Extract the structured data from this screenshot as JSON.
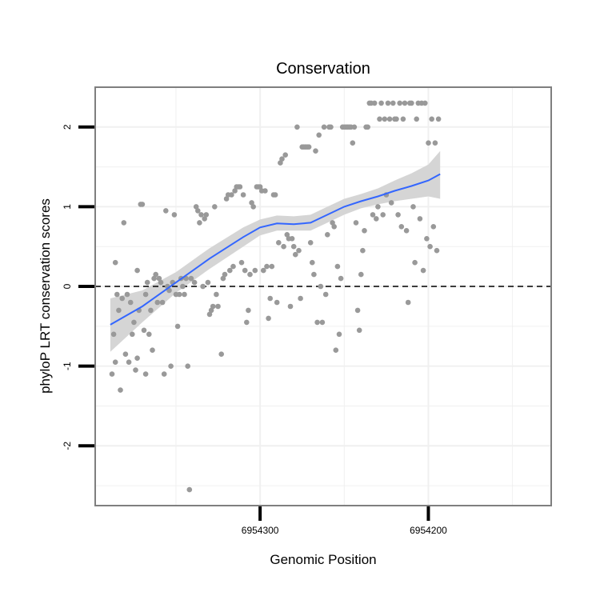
{
  "chart_data": {
    "type": "scatter",
    "title": "Conservation",
    "xlabel": "Genomic Position",
    "ylabel": "phyloP LRT conservation scores",
    "x_reversed": true,
    "xlim": [
      6954398,
      6954127
    ],
    "ylim": [
      -2.75,
      2.5
    ],
    "x_ticks": [
      {
        "value": 6954300,
        "label": "6954300"
      },
      {
        "value": 6954200,
        "label": "6954200"
      }
    ],
    "y_ticks": [
      {
        "value": -2,
        "label": "-2"
      },
      {
        "value": -1,
        "label": "-1"
      },
      {
        "value": 0,
        "label": "0"
      },
      {
        "value": 1,
        "label": "1"
      },
      {
        "value": 2,
        "label": "2"
      }
    ],
    "reference_line": {
      "y": 0,
      "style": "dashed"
    },
    "grid": true,
    "colors": {
      "points": "#999999",
      "smooth_line": "#3366FF",
      "ribbon": "#d5d5d5",
      "panel_border": "#7f7f7f",
      "grid": "#f0f0f0"
    },
    "points": [
      [
        6954388,
        -1.1
      ],
      [
        6954387,
        -0.6
      ],
      [
        6954386,
        0.3
      ],
      [
        6954386,
        -0.95
      ],
      [
        6954385,
        -0.1
      ],
      [
        6954384,
        -0.3
      ],
      [
        6954383,
        -1.3
      ],
      [
        6954382,
        -0.15
      ],
      [
        6954381,
        0.8
      ],
      [
        6954380,
        -0.85
      ],
      [
        6954379,
        -0.1
      ],
      [
        6954378,
        -0.95
      ],
      [
        6954377,
        -0.2
      ],
      [
        6954376,
        -0.6
      ],
      [
        6954375,
        -0.45
      ],
      [
        6954374,
        -1.05
      ],
      [
        6954373,
        -0.9
      ],
      [
        6954373,
        0.2
      ],
      [
        6954372,
        -0.3
      ],
      [
        6954371,
        1.03
      ],
      [
        6954370,
        1.03
      ],
      [
        6954369,
        -0.55
      ],
      [
        6954368,
        -1.1
      ],
      [
        6954368,
        -0.1
      ],
      [
        6954367,
        0.05
      ],
      [
        6954366,
        -0.6
      ],
      [
        6954365,
        -0.3
      ],
      [
        6954364,
        -0.8
      ],
      [
        6954363,
        0.1
      ],
      [
        6954362,
        0.15
      ],
      [
        6954361,
        -0.2
      ],
      [
        6954360,
        0.1
      ],
      [
        6954359,
        0.05
      ],
      [
        6954358,
        -0.2
      ],
      [
        6954357,
        -1.1
      ],
      [
        6954356,
        0.95
      ],
      [
        6954355,
        0.0
      ],
      [
        6954354,
        -0.05
      ],
      [
        6954353,
        -1.0
      ],
      [
        6954352,
        0.05
      ],
      [
        6954351,
        0.9
      ],
      [
        6954350,
        -0.1
      ],
      [
        6954349,
        -0.5
      ],
      [
        6954348,
        -0.1
      ],
      [
        6954347,
        0.1
      ],
      [
        6954346,
        0.0
      ],
      [
        6954345,
        -0.1
      ],
      [
        6954344,
        0.1
      ],
      [
        6954343,
        -1.0
      ],
      [
        6954342,
        -2.55
      ],
      [
        6954341,
        0.1
      ],
      [
        6954339,
        0.05
      ],
      [
        6954338,
        1.0
      ],
      [
        6954337,
        0.95
      ],
      [
        6954336,
        0.8
      ],
      [
        6954335,
        0.9
      ],
      [
        6954334,
        0.0
      ],
      [
        6954333,
        0.85
      ],
      [
        6954332,
        0.9
      ],
      [
        6954331,
        0.05
      ],
      [
        6954330,
        -0.35
      ],
      [
        6954329,
        -0.3
      ],
      [
        6954328,
        -0.25
      ],
      [
        6954327,
        1.0
      ],
      [
        6954326,
        -0.1
      ],
      [
        6954325,
        -0.25
      ],
      [
        6954323,
        -0.85
      ],
      [
        6954322,
        0.1
      ],
      [
        6954321,
        0.15
      ],
      [
        6954320,
        1.1
      ],
      [
        6954319,
        1.15
      ],
      [
        6954318,
        0.2
      ],
      [
        6954317,
        1.15
      ],
      [
        6954316,
        0.25
      ],
      [
        6954315,
        1.2
      ],
      [
        6954314,
        1.25
      ],
      [
        6954313,
        1.25
      ],
      [
        6954312,
        1.25
      ],
      [
        6954311,
        0.3
      ],
      [
        6954310,
        1.15
      ],
      [
        6954309,
        0.2
      ],
      [
        6954308,
        -0.45
      ],
      [
        6954307,
        -0.3
      ],
      [
        6954306,
        0.15
      ],
      [
        6954305,
        1.05
      ],
      [
        6954304,
        1.0
      ],
      [
        6954303,
        0.2
      ],
      [
        6954302,
        1.25
      ],
      [
        6954301,
        1.25
      ],
      [
        6954300,
        1.25
      ],
      [
        6954299,
        1.2
      ],
      [
        6954298,
        0.2
      ],
      [
        6954297,
        1.2
      ],
      [
        6954296,
        0.25
      ],
      [
        6954295,
        -0.4
      ],
      [
        6954294,
        -0.15
      ],
      [
        6954293,
        0.25
      ],
      [
        6954292,
        1.15
      ],
      [
        6954291,
        1.15
      ],
      [
        6954290,
        -0.2
      ],
      [
        6954289,
        0.55
      ],
      [
        6954288,
        1.55
      ],
      [
        6954287,
        1.6
      ],
      [
        6954286,
        0.5
      ],
      [
        6954285,
        1.65
      ],
      [
        6954284,
        0.65
      ],
      [
        6954283,
        0.6
      ],
      [
        6954282,
        -0.25
      ],
      [
        6954281,
        0.6
      ],
      [
        6954280,
        0.5
      ],
      [
        6954279,
        0.4
      ],
      [
        6954278,
        2.0
      ],
      [
        6954277,
        0.45
      ],
      [
        6954276,
        -0.15
      ],
      [
        6954275,
        1.75
      ],
      [
        6954274,
        1.75
      ],
      [
        6954273,
        1.75
      ],
      [
        6954272,
        1.75
      ],
      [
        6954271,
        1.75
      ],
      [
        6954270,
        0.55
      ],
      [
        6954269,
        0.3
      ],
      [
        6954268,
        0.15
      ],
      [
        6954267,
        1.7
      ],
      [
        6954266,
        -0.45
      ],
      [
        6954265,
        1.9
      ],
      [
        6954264,
        0.0
      ],
      [
        6954263,
        -0.45
      ],
      [
        6954262,
        2.0
      ],
      [
        6954261,
        -0.1
      ],
      [
        6954260,
        0.65
      ],
      [
        6954259,
        2.0
      ],
      [
        6954258,
        2.0
      ],
      [
        6954257,
        0.8
      ],
      [
        6954256,
        0.75
      ],
      [
        6954255,
        -0.8
      ],
      [
        6954254,
        0.25
      ],
      [
        6954253,
        -0.6
      ],
      [
        6954252,
        0.1
      ],
      [
        6954251,
        2.0
      ],
      [
        6954250,
        2.0
      ],
      [
        6954249,
        2.0
      ],
      [
        6954248,
        2.0
      ],
      [
        6954247,
        2.0
      ],
      [
        6954246,
        2.0
      ],
      [
        6954245,
        1.8
      ],
      [
        6954244,
        2.0
      ],
      [
        6954243,
        0.8
      ],
      [
        6954242,
        -0.3
      ],
      [
        6954241,
        -0.55
      ],
      [
        6954240,
        0.15
      ],
      [
        6954239,
        0.45
      ],
      [
        6954238,
        0.7
      ],
      [
        6954237,
        2.0
      ],
      [
        6954236,
        2.0
      ],
      [
        6954235,
        2.3
      ],
      [
        6954234,
        2.3
      ],
      [
        6954233,
        0.9
      ],
      [
        6954232,
        2.3
      ],
      [
        6954231,
        0.85
      ],
      [
        6954230,
        1.0
      ],
      [
        6954229,
        2.1
      ],
      [
        6954228,
        2.3
      ],
      [
        6954227,
        0.9
      ],
      [
        6954226,
        2.1
      ],
      [
        6954225,
        1.15
      ],
      [
        6954224,
        2.3
      ],
      [
        6954223,
        2.1
      ],
      [
        6954222,
        1.05
      ],
      [
        6954221,
        2.3
      ],
      [
        6954220,
        2.1
      ],
      [
        6954219,
        2.1
      ],
      [
        6954218,
        0.9
      ],
      [
        6954217,
        2.3
      ],
      [
        6954216,
        0.75
      ],
      [
        6954215,
        2.1
      ],
      [
        6954214,
        2.3
      ],
      [
        6954213,
        0.7
      ],
      [
        6954212,
        -0.2
      ],
      [
        6954211,
        2.3
      ],
      [
        6954210,
        2.3
      ],
      [
        6954209,
        1.0
      ],
      [
        6954208,
        0.3
      ],
      [
        6954207,
        2.1
      ],
      [
        6954206,
        2.3
      ],
      [
        6954205,
        0.85
      ],
      [
        6954204,
        2.3
      ],
      [
        6954203,
        0.2
      ],
      [
        6954202,
        2.3
      ],
      [
        6954201,
        0.6
      ],
      [
        6954200,
        1.8
      ],
      [
        6954199,
        0.5
      ],
      [
        6954198,
        2.1
      ],
      [
        6954197,
        0.75
      ],
      [
        6954196,
        1.8
      ],
      [
        6954195,
        0.45
      ],
      [
        6954194,
        2.1
      ]
    ],
    "smooth": {
      "x": [
        6954389,
        6954370,
        6954350,
        6954330,
        6954310,
        6954300,
        6954290,
        6954280,
        6954270,
        6954260,
        6954250,
        6954240,
        6954230,
        6954220,
        6954210,
        6954200,
        6954193
      ],
      "y": [
        -0.48,
        -0.25,
        0.05,
        0.35,
        0.62,
        0.74,
        0.79,
        0.78,
        0.8,
        0.9,
        1.0,
        1.07,
        1.13,
        1.2,
        1.26,
        1.33,
        1.41
      ],
      "lower": [
        -0.82,
        -0.45,
        -0.08,
        0.22,
        0.5,
        0.64,
        0.7,
        0.7,
        0.7,
        0.8,
        0.9,
        0.98,
        1.03,
        1.07,
        1.1,
        1.13,
        1.1
      ],
      "upper": [
        -0.15,
        -0.05,
        0.18,
        0.48,
        0.74,
        0.84,
        0.89,
        0.88,
        0.9,
        1.0,
        1.1,
        1.16,
        1.23,
        1.33,
        1.42,
        1.53,
        1.7
      ]
    }
  }
}
